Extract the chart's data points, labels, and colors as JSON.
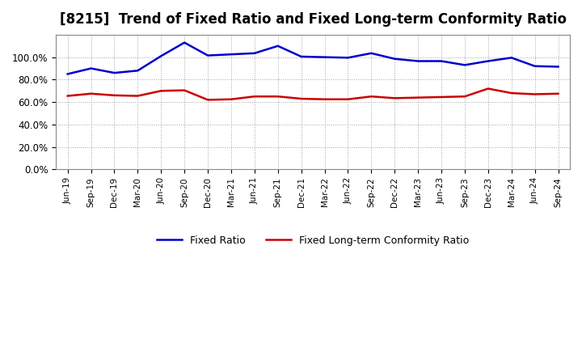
{
  "title": "[8215]  Trend of Fixed Ratio and Fixed Long-term Conformity Ratio",
  "labels": [
    "Jun-19",
    "Sep-19",
    "Dec-19",
    "Mar-20",
    "Jun-20",
    "Sep-20",
    "Dec-20",
    "Mar-21",
    "Jun-21",
    "Sep-21",
    "Dec-21",
    "Mar-22",
    "Jun-22",
    "Sep-22",
    "Dec-22",
    "Mar-23",
    "Jun-23",
    "Sep-23",
    "Dec-23",
    "Mar-24",
    "Jun-24",
    "Sep-24"
  ],
  "fixed_ratio": [
    85.0,
    90.0,
    86.0,
    88.0,
    101.0,
    113.0,
    101.5,
    102.5,
    103.5,
    110.0,
    100.5,
    100.0,
    99.5,
    103.5,
    98.5,
    96.5,
    96.5,
    93.0,
    96.5,
    99.5,
    92.0,
    91.5
  ],
  "fixed_lt_ratio": [
    65.5,
    67.5,
    66.0,
    65.5,
    70.0,
    70.5,
    62.0,
    62.5,
    65.0,
    65.0,
    63.0,
    62.5,
    62.5,
    65.0,
    63.5,
    64.0,
    64.5,
    65.0,
    72.0,
    68.0,
    67.0,
    67.5
  ],
  "ylim": [
    0,
    120
  ],
  "yticks": [
    0,
    20,
    40,
    60,
    80,
    100
  ],
  "fixed_ratio_color": "#0000CC",
  "fixed_lt_ratio_color": "#CC0000",
  "background_color": "#FFFFFF",
  "grid_color": "#999999",
  "title_fontsize": 12,
  "legend_fixed_ratio": "Fixed Ratio",
  "legend_fixed_lt_ratio": "Fixed Long-term Conformity Ratio"
}
